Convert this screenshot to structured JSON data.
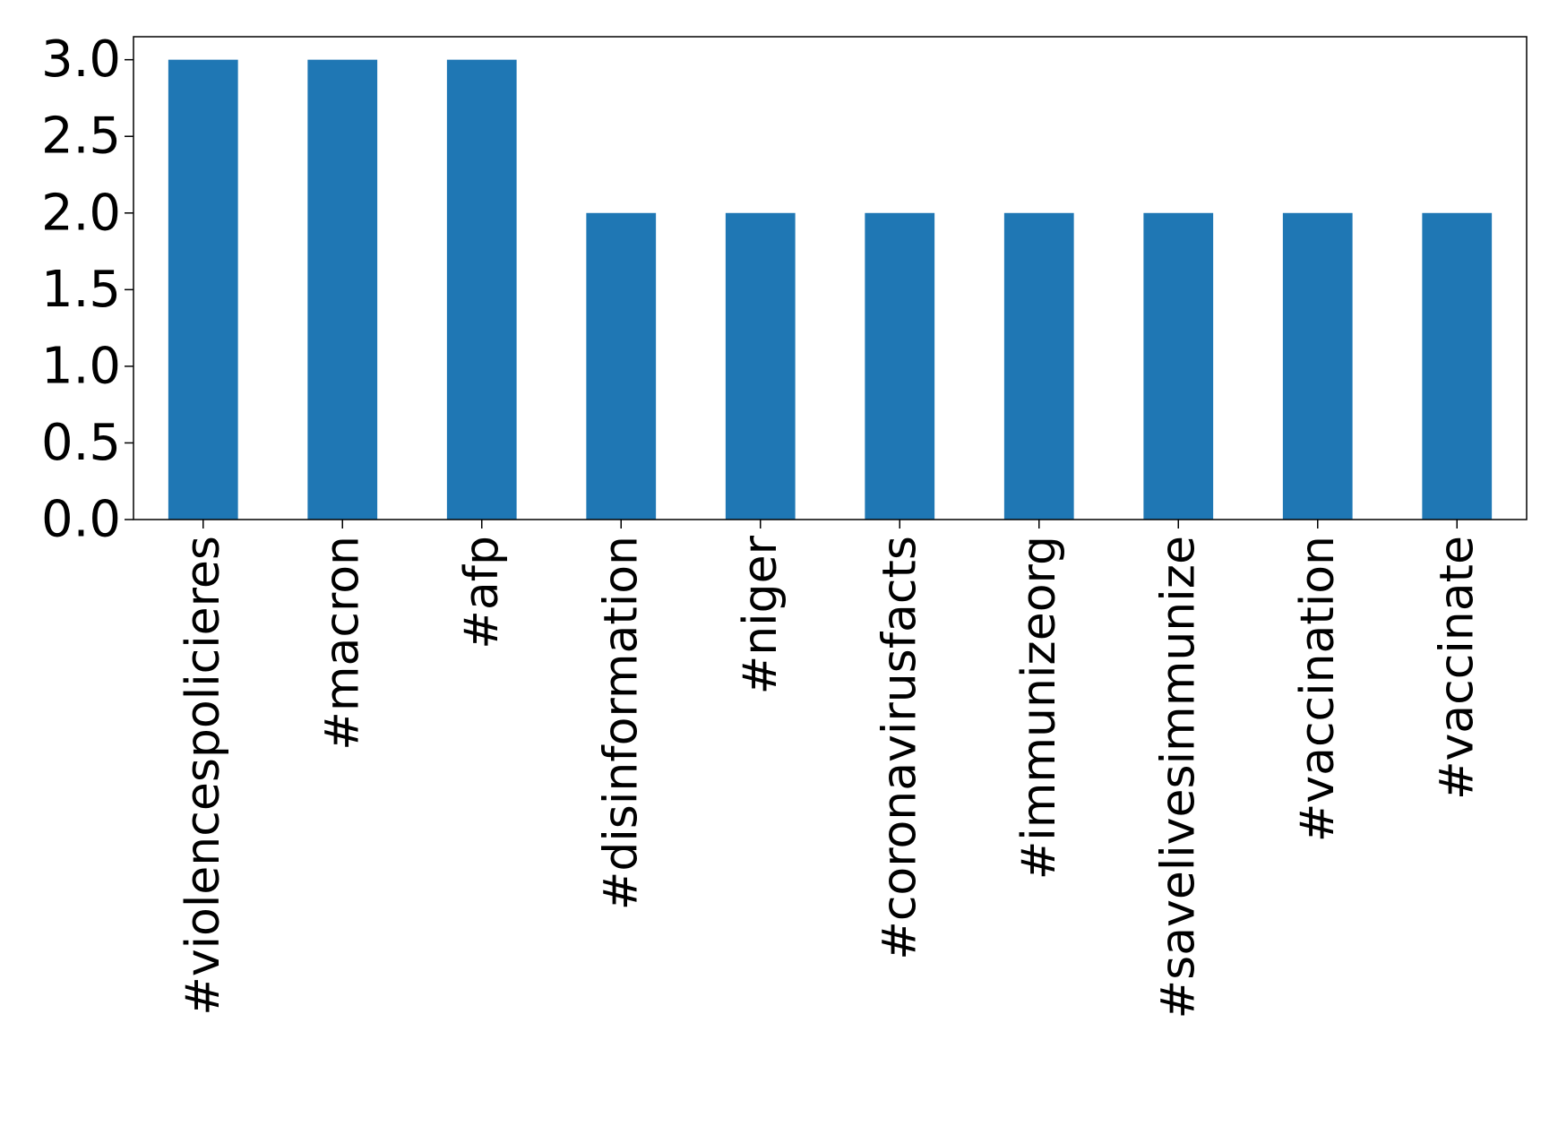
{
  "chart_data": {
    "type": "bar",
    "categories": [
      "#violencespolicieres",
      "#macron",
      "#afp",
      "#disinformation",
      "#niger",
      "#coronavirusfacts",
      "#immunizeorg",
      "#savelivesimmunize",
      "#vaccination",
      "#vaccinate"
    ],
    "values": [
      3,
      3,
      3,
      2,
      2,
      2,
      2,
      2,
      2,
      2
    ],
    "title": "",
    "xlabel": "",
    "ylabel": "",
    "ylim": [
      0,
      3.15
    ],
    "yticks": [
      "0.0",
      "0.5",
      "1.0",
      "1.5",
      "2.0",
      "2.5",
      "3.0"
    ],
    "bar_color": "#1f77b4",
    "grid": false,
    "legend": "none"
  }
}
